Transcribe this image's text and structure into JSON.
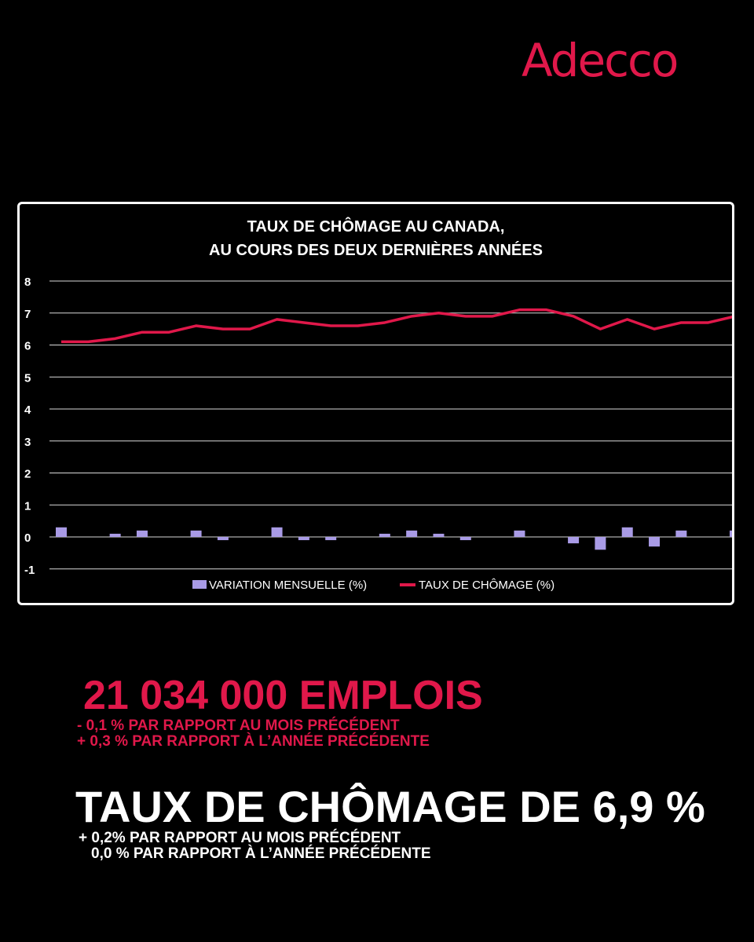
{
  "brand": {
    "logo_text": "Adecco",
    "accent": "#e0184a"
  },
  "chart_data": {
    "type": "bar+line",
    "title_line1": "TAUX DE CHÔMAGE AU CANADA,",
    "title_line2": "AU COURS DES DEUX DERNIÈRES ANNÉES",
    "ylim": [
      -1,
      8
    ],
    "yticks": [
      "8",
      "7",
      "6",
      "5",
      "4",
      "3",
      "2",
      "1",
      "0",
      "-1"
    ],
    "grid": true,
    "legend_position": "bottom",
    "series": [
      {
        "name": "VARIATION MENSUELLE (%)",
        "type": "bar",
        "color": "#a99be6",
        "values": [
          0.3,
          0,
          0.1,
          0.2,
          0,
          0.2,
          -0.1,
          0,
          0.3,
          -0.1,
          -0.1,
          0,
          0.1,
          0.2,
          0.1,
          -0.1,
          0,
          0.2,
          0,
          -0.2,
          -0.4,
          0.3,
          -0.3,
          0.2,
          0,
          0.2
        ]
      },
      {
        "name": "TAUX DE CHÔMAGE (%)",
        "type": "line",
        "color": "#e0184a",
        "values": [
          6.1,
          6.1,
          6.2,
          6.4,
          6.4,
          6.6,
          6.5,
          6.5,
          6.8,
          6.7,
          6.6,
          6.6,
          6.7,
          6.9,
          7.0,
          6.9,
          6.9,
          7.1,
          7.1,
          6.9,
          6.5,
          6.8,
          6.5,
          6.7,
          6.7,
          6.9
        ]
      }
    ]
  },
  "stats": {
    "emplois": {
      "headline": "21 034 000 EMPLOIS",
      "line1": "- 0,1 % PAR RAPPORT AU MOIS PRÉCÉDENT",
      "line2": "+ 0,3 % PAR RAPPORT À L’ANNÉE PRÉCÉDENTE"
    },
    "chomage": {
      "headline": "TAUX DE CHÔMAGE DE 6,9 %",
      "line1": "+ 0,2% PAR RAPPORT AU MOIS PRÉCÉDENT",
      "line2": "0,0 % PAR RAPPORT À L’ANNÉE PRÉCÉDENTE"
    }
  }
}
